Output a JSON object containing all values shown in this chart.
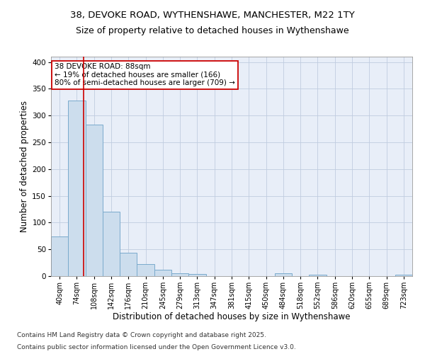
{
  "title_line1": "38, DEVOKE ROAD, WYTHENSHAWE, MANCHESTER, M22 1TY",
  "title_line2": "Size of property relative to detached houses in Wythenshawe",
  "xlabel": "Distribution of detached houses by size in Wythenshawe",
  "ylabel": "Number of detached properties",
  "bin_labels": [
    "40sqm",
    "74sqm",
    "108sqm",
    "142sqm",
    "176sqm",
    "210sqm",
    "245sqm",
    "279sqm",
    "313sqm",
    "347sqm",
    "381sqm",
    "415sqm",
    "450sqm",
    "484sqm",
    "518sqm",
    "552sqm",
    "586sqm",
    "620sqm",
    "655sqm",
    "689sqm",
    "723sqm"
  ],
  "bar_heights": [
    74,
    328,
    283,
    121,
    44,
    22,
    12,
    5,
    4,
    0,
    0,
    0,
    0,
    5,
    0,
    3,
    0,
    0,
    0,
    0,
    3
  ],
  "bar_color": "#ccdded",
  "bar_edge_color": "#7aaacc",
  "bar_edge_width": 0.7,
  "grid_color": "#c0cce0",
  "bg_color": "#e8eef8",
  "red_line_x": 1.41,
  "red_line_color": "#cc0000",
  "annotation_text": "38 DEVOKE ROAD: 88sqm\n← 19% of detached houses are smaller (166)\n80% of semi-detached houses are larger (709) →",
  "annotation_box_color": "#ffffff",
  "annotation_border_color": "#cc0000",
  "ylim": [
    0,
    410
  ],
  "yticks": [
    0,
    50,
    100,
    150,
    200,
    250,
    300,
    350,
    400
  ],
  "footer_line1": "Contains HM Land Registry data © Crown copyright and database right 2025.",
  "footer_line2": "Contains public sector information licensed under the Open Government Licence v3.0.",
  "footer_fontsize": 6.5,
  "title_fontsize1": 9.5,
  "title_fontsize2": 9,
  "axis_label_fontsize": 8.5,
  "tick_fontsize": 7,
  "annot_fontsize": 7.5
}
